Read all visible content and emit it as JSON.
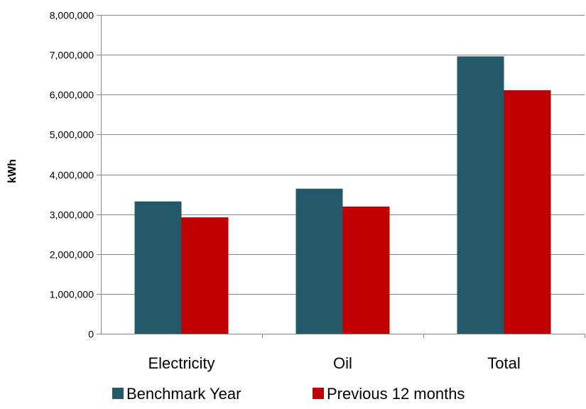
{
  "chart_data": {
    "type": "bar",
    "title": "",
    "xlabel": "",
    "ylabel": "kWh",
    "categories": [
      "Electricity",
      "Oil",
      "Total"
    ],
    "series": [
      {
        "name": "Benchmark Year",
        "color": "#235968",
        "values": [
          3320000,
          3640000,
          6960000
        ]
      },
      {
        "name": "Previous 12 months",
        "color": "#C00000",
        "values": [
          2920000,
          3190000,
          6110000
        ]
      }
    ],
    "ylim": [
      0,
      8000000
    ],
    "yticks": [
      0,
      1000000,
      2000000,
      3000000,
      4000000,
      5000000,
      6000000,
      7000000,
      8000000
    ],
    "ytick_labels": [
      "0",
      "1,000,000",
      "2,000,000",
      "3,000,000",
      "4,000,000",
      "5,000,000",
      "6,000,000",
      "7,000,000",
      "8,000,000"
    ],
    "grid": true,
    "legend_position": "bottom"
  }
}
